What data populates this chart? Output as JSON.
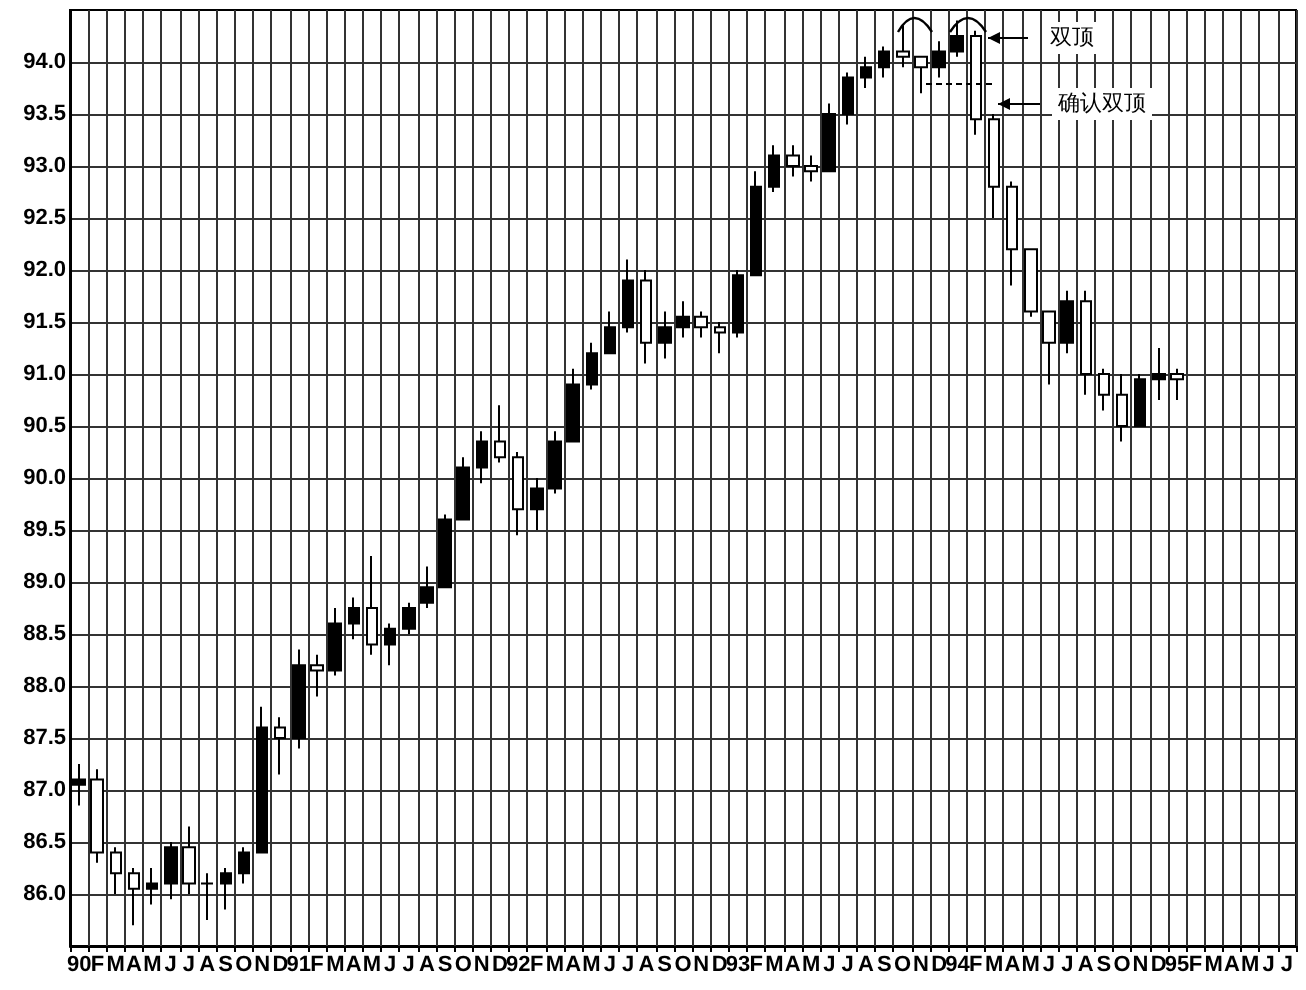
{
  "chart_data": {
    "type": "candlestick",
    "categories": [
      "90",
      "F",
      "M",
      "A",
      "M",
      "J",
      "J",
      "A",
      "S",
      "O",
      "N",
      "D",
      "91",
      "F",
      "M",
      "A",
      "M",
      "J",
      "J",
      "A",
      "S",
      "O",
      "N",
      "D",
      "92",
      "F",
      "M",
      "A",
      "M",
      "J",
      "J",
      "A",
      "S",
      "O",
      "N",
      "D",
      "93",
      "F",
      "M",
      "A",
      "M",
      "J",
      "J",
      "A",
      "S",
      "O",
      "N",
      "D",
      "94",
      "F",
      "M",
      "A",
      "M",
      "J",
      "J",
      "A",
      "S",
      "O",
      "N",
      "D",
      "95",
      "F",
      "M",
      "A",
      "M",
      "J",
      "J"
    ],
    "ohlc": [
      [
        87.05,
        87.25,
        86.85,
        87.1
      ],
      [
        87.1,
        87.2,
        86.3,
        86.4
      ],
      [
        86.4,
        86.45,
        86.0,
        86.2
      ],
      [
        86.2,
        86.25,
        85.7,
        86.05
      ],
      [
        86.05,
        86.25,
        85.9,
        86.1
      ],
      [
        86.1,
        86.5,
        85.95,
        86.45
      ],
      [
        86.45,
        86.65,
        86.0,
        86.1
      ],
      [
        86.1,
        86.2,
        85.75,
        86.1
      ],
      [
        86.1,
        86.25,
        85.85,
        86.2
      ],
      [
        86.2,
        86.45,
        86.1,
        86.4
      ],
      [
        86.4,
        87.8,
        86.4,
        87.6
      ],
      [
        87.6,
        87.7,
        87.15,
        87.5
      ],
      [
        87.5,
        88.35,
        87.4,
        88.2
      ],
      [
        88.2,
        88.3,
        87.9,
        88.15
      ],
      [
        88.15,
        88.75,
        88.1,
        88.6
      ],
      [
        88.6,
        88.85,
        88.45,
        88.75
      ],
      [
        88.75,
        89.25,
        88.3,
        88.4
      ],
      [
        88.4,
        88.6,
        88.2,
        88.55
      ],
      [
        88.55,
        88.8,
        88.5,
        88.75
      ],
      [
        88.8,
        89.15,
        88.75,
        88.95
      ],
      [
        88.95,
        89.65,
        88.95,
        89.6
      ],
      [
        89.6,
        90.2,
        89.6,
        90.1
      ],
      [
        90.1,
        90.45,
        89.95,
        90.35
      ],
      [
        90.35,
        90.7,
        90.15,
        90.2
      ],
      [
        90.2,
        90.25,
        89.45,
        89.7
      ],
      [
        89.7,
        90.0,
        89.5,
        89.9
      ],
      [
        89.9,
        90.45,
        89.85,
        90.35
      ],
      [
        90.35,
        91.05,
        90.35,
        90.9
      ],
      [
        90.9,
        91.3,
        90.85,
        91.2
      ],
      [
        91.2,
        91.6,
        91.2,
        91.45
      ],
      [
        91.45,
        92.1,
        91.4,
        91.9
      ],
      [
        91.9,
        92.0,
        91.1,
        91.3
      ],
      [
        91.3,
        91.6,
        91.15,
        91.45
      ],
      [
        91.45,
        91.7,
        91.35,
        91.55
      ],
      [
        91.55,
        91.6,
        91.35,
        91.45
      ],
      [
        91.45,
        91.5,
        91.2,
        91.4
      ],
      [
        91.4,
        92.0,
        91.35,
        91.95
      ],
      [
        91.95,
        92.95,
        91.95,
        92.8
      ],
      [
        92.8,
        93.2,
        92.75,
        93.1
      ],
      [
        93.1,
        93.2,
        92.9,
        93.0
      ],
      [
        93.0,
        93.1,
        92.85,
        92.95
      ],
      [
        92.95,
        93.6,
        92.95,
        93.5
      ],
      [
        93.5,
        93.9,
        93.4,
        93.85
      ],
      [
        93.85,
        94.05,
        93.75,
        93.95
      ],
      [
        93.95,
        94.15,
        93.85,
        94.1
      ],
      [
        94.1,
        94.35,
        93.95,
        94.05
      ],
      [
        94.05,
        94.05,
        93.7,
        93.95
      ],
      [
        93.95,
        94.2,
        93.85,
        94.1
      ],
      [
        94.1,
        94.4,
        94.05,
        94.25
      ],
      [
        94.25,
        94.3,
        93.3,
        93.45
      ],
      [
        93.45,
        93.5,
        92.5,
        92.8
      ],
      [
        92.8,
        92.85,
        91.85,
        92.2
      ],
      [
        92.2,
        92.2,
        91.55,
        91.6
      ],
      [
        91.6,
        91.6,
        90.9,
        91.3
      ],
      [
        91.3,
        91.8,
        91.2,
        91.7
      ],
      [
        91.7,
        91.8,
        90.8,
        91.0
      ],
      [
        91.0,
        91.05,
        90.65,
        90.8
      ],
      [
        90.8,
        91.0,
        90.35,
        90.5
      ],
      [
        90.5,
        91.0,
        90.5,
        90.95
      ],
      [
        90.95,
        91.25,
        90.75,
        91.0
      ],
      [
        91.0,
        91.05,
        90.75,
        90.95
      ],
      null,
      null,
      null,
      null,
      null,
      null
    ],
    "color": "#000000",
    "ylim": [
      85.5,
      94.5
    ],
    "yticks": [
      {
        "value": 86,
        "label": "86.0"
      },
      86.5,
      {
        "value": 87,
        "label": "87.0"
      },
      87.5,
      {
        "value": 88,
        "label": "88.0"
      },
      88.5,
      {
        "value": 89,
        "label": "89.0"
      },
      89.5,
      {
        "value": 90,
        "label": "90.0"
      },
      90.5,
      {
        "value": 91,
        "label": "91.0"
      },
      91.5,
      {
        "value": 92,
        "label": "92.0"
      },
      92.5,
      {
        "value": 93,
        "label": "93.0"
      },
      93.5,
      {
        "value": 94,
        "label": "94.0"
      }
    ],
    "grid": true,
    "annotations": [
      "双顶",
      "确认双顶"
    ]
  }
}
